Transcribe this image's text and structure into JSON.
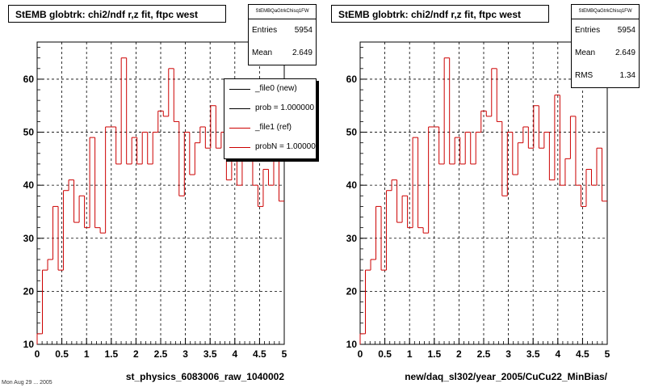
{
  "colors": {
    "new": "#000000",
    "ref": "#cc0000"
  },
  "footer_text": "Mon Aug 29 ... 2005",
  "chart_data": [
    {
      "type": "histogram",
      "title": "StEMB globtrk: chi2/ndf r,z fit, ftpc west",
      "xlabel": "st_physics_6083006_raw_1040002",
      "ylabel": "",
      "xlim": [
        0,
        5
      ],
      "ylim": [
        10,
        67
      ],
      "xticks": [
        "0",
        "0.5",
        "1",
        "1.5",
        "2",
        "2.5",
        "3",
        "3.5",
        "4",
        "4.5",
        "5"
      ],
      "yticks": [
        "10",
        "20",
        "30",
        "40",
        "50",
        "60"
      ],
      "grid": true,
      "stats": {
        "name": "StEMBQaGtrkChisq1FW",
        "entries_label": "Entries",
        "entries": "5954",
        "mean_label": "Mean",
        "mean": "2.649"
      },
      "legend": [
        {
          "label": "_file0 (new)",
          "color": "#000000"
        },
        {
          "label": "prob = 1.000000",
          "color": "#000000"
        },
        {
          "label": "_file1 (ref)",
          "color": "#cc0000"
        },
        {
          "label": "probN = 1.000000",
          "color": "#cc0000"
        }
      ],
      "series": [
        {
          "name": "_file1 (ref)",
          "values": [
            12,
            24,
            26,
            36,
            24,
            39,
            41,
            33,
            38,
            32,
            49,
            32,
            31,
            51,
            51,
            44,
            64,
            44,
            49,
            44,
            50,
            44,
            50,
            54,
            53,
            62,
            52,
            38,
            50,
            42,
            48,
            51,
            47,
            55,
            47,
            50,
            41,
            57,
            40,
            45,
            53,
            40,
            36,
            43,
            40,
            47,
            37
          ]
        }
      ]
    },
    {
      "type": "histogram",
      "title": "StEMB globtrk: chi2/ndf r,z fit, ftpc west",
      "xlabel": "new/daq_sl302/year_2005/CuCu22_MinBias/",
      "ylabel": "",
      "xlim": [
        0,
        5
      ],
      "ylim": [
        10,
        67
      ],
      "xticks": [
        "0",
        "0.5",
        "1",
        "1.5",
        "2",
        "2.5",
        "3",
        "3.5",
        "4",
        "4.5",
        "5"
      ],
      "yticks": [
        "10",
        "20",
        "30",
        "40",
        "50",
        "60"
      ],
      "grid": true,
      "stats": {
        "name": "StEMBQaGtrkChisq1FW",
        "entries_label": "Entries",
        "entries": "5954",
        "mean_label": "Mean",
        "mean": "2.649",
        "rms_label": "RMS",
        "rms": "1.34"
      },
      "legend": [],
      "series": [
        {
          "name": "",
          "values": [
            12,
            24,
            26,
            36,
            24,
            39,
            41,
            33,
            38,
            32,
            49,
            32,
            31,
            51,
            51,
            44,
            64,
            44,
            49,
            44,
            50,
            44,
            50,
            54,
            53,
            62,
            52,
            38,
            50,
            42,
            48,
            51,
            47,
            55,
            47,
            50,
            41,
            57,
            40,
            45,
            53,
            40,
            36,
            43,
            40,
            47,
            37
          ]
        }
      ]
    }
  ]
}
